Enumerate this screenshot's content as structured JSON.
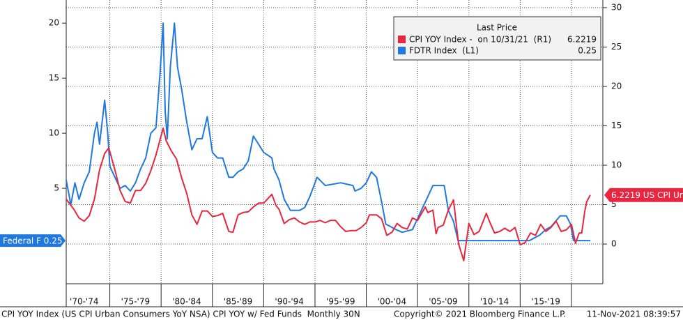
{
  "chart_data": {
    "type": "line",
    "legend_title": "Last Price",
    "xlim": [
      1970.75,
      2023.06
    ],
    "xticks": [
      {
        "value": 1972.5,
        "label": "'70-'74"
      },
      {
        "value": 1977.5,
        "label": "'75-'79"
      },
      {
        "value": 1982.5,
        "label": "'80-'84"
      },
      {
        "value": 1987.5,
        "label": "'85-'89"
      },
      {
        "value": 1992.5,
        "label": "'90-'94"
      },
      {
        "value": 1997.5,
        "label": "'95-'99"
      },
      {
        "value": 2002.5,
        "label": "'00-'04"
      },
      {
        "value": 2007.5,
        "label": "'05-'09"
      },
      {
        "value": 2012.5,
        "label": "'10-'14"
      },
      {
        "value": 2017.5,
        "label": "'15-'19"
      }
    ],
    "xgrid": [
      1975,
      1980,
      1985,
      1990,
      1995,
      2000,
      2005,
      2010,
      2015,
      2020
    ],
    "ylim": [
      -3.67,
      22.1
    ],
    "yticks": [
      5,
      10,
      15,
      20
    ],
    "y2lim": [
      -5.04,
      30.97
    ],
    "y2ticks": [
      0,
      5,
      10,
      15,
      20,
      25,
      30
    ],
    "grid": true,
    "series": [
      {
        "name": "CPI YOY Index -  on 10/31/21  (R1)",
        "color": "#e8263f",
        "axis": "y2",
        "tag": "6.2219 US CPI Ur",
        "x": [
          1970.75,
          1971.5,
          1972.0,
          1972.5,
          1973.0,
          1973.5,
          1974.0,
          1974.5,
          1974.9,
          1975.5,
          1976.0,
          1976.5,
          1977.0,
          1977.5,
          1978.0,
          1978.5,
          1979.0,
          1979.5,
          1980.2,
          1980.5,
          1981.0,
          1981.5,
          1982.0,
          1982.5,
          1983.0,
          1983.5,
          1984.0,
          1984.5,
          1985.0,
          1985.5,
          1986.0,
          1986.6,
          1987.0,
          1987.5,
          1988.0,
          1988.5,
          1989.0,
          1989.5,
          1990.0,
          1990.8,
          1991.2,
          1991.5,
          1992.0,
          1992.5,
          1993.0,
          1993.5,
          1994.0,
          1994.5,
          1995.0,
          1995.5,
          1996.0,
          1996.5,
          1997.0,
          1997.5,
          1998.0,
          1998.5,
          1999.0,
          1999.5,
          2000.0,
          2000.3,
          2001.0,
          2001.5,
          2002.0,
          2002.5,
          2003.0,
          2003.5,
          2004.0,
          2004.5,
          2005.0,
          2005.75,
          2006.0,
          2006.5,
          2006.8,
          2007.0,
          2007.5,
          2008.0,
          2008.5,
          2009.0,
          2009.5,
          2010.0,
          2010.5,
          2011.0,
          2011.7,
          2012.0,
          2012.5,
          2013.0,
          2013.5,
          2014.0,
          2014.5,
          2015.0,
          2015.5,
          2016.0,
          2016.5,
          2017.0,
          2017.5,
          2018.0,
          2018.5,
          2019.0,
          2019.5,
          2020.0,
          2020.4,
          2020.75,
          2021.0,
          2021.3,
          2021.5,
          2021.83
        ],
        "values": [
          5.7,
          4.4,
          3.3,
          2.9,
          3.6,
          5.7,
          9.4,
          11.5,
          12.2,
          9.4,
          6.8,
          5.4,
          5.2,
          6.8,
          6.8,
          7.7,
          9.3,
          11.3,
          14.7,
          13.1,
          11.8,
          10.8,
          8.4,
          6.4,
          3.7,
          2.5,
          4.2,
          4.2,
          3.5,
          3.6,
          3.9,
          1.6,
          1.5,
          3.7,
          4.0,
          4.1,
          4.7,
          5.2,
          5.2,
          6.3,
          4.9,
          4.4,
          2.6,
          3.1,
          3.3,
          2.8,
          2.5,
          2.8,
          2.8,
          3.0,
          2.7,
          3.0,
          3.0,
          2.2,
          1.6,
          1.7,
          1.7,
          2.1,
          2.7,
          3.7,
          3.7,
          3.2,
          1.1,
          1.5,
          2.6,
          2.1,
          1.9,
          3.3,
          3.0,
          4.7,
          4.0,
          4.3,
          1.3,
          2.1,
          2.4,
          4.3,
          5.6,
          0.0,
          -2.1,
          2.6,
          1.2,
          1.6,
          3.9,
          2.9,
          1.4,
          1.6,
          2.0,
          1.6,
          2.1,
          -0.1,
          0.2,
          1.4,
          1.1,
          2.5,
          1.6,
          2.1,
          2.9,
          1.6,
          1.8,
          2.5,
          0.1,
          1.4,
          1.4,
          4.2,
          5.4,
          6.2219
        ]
      },
      {
        "name": "FDTR Index  (L1)",
        "color": "#1f78e0",
        "axis": "y",
        "tag": "Federal F 0.25",
        "x": [
          1970.75,
          1971.0,
          1971.2,
          1971.6,
          1972.0,
          1972.5,
          1973.0,
          1973.5,
          1973.75,
          1974.0,
          1974.5,
          1974.8,
          1975.0,
          1975.5,
          1976.0,
          1976.5,
          1977.0,
          1977.5,
          1978.0,
          1978.5,
          1979.0,
          1979.5,
          1979.9,
          1980.2,
          1980.4,
          1980.6,
          1980.9,
          1981.3,
          1981.6,
          1982.0,
          1982.5,
          1983.0,
          1983.5,
          1984.0,
          1984.5,
          1985.0,
          1985.5,
          1986.0,
          1986.6,
          1987.0,
          1987.5,
          1988.0,
          1988.5,
          1989.0,
          1989.5,
          1990.0,
          1990.8,
          1991.0,
          1991.5,
          1992.0,
          1992.6,
          1993.5,
          1994.0,
          1994.5,
          1995.0,
          1995.2,
          1996.0,
          1997.5,
          1998.7,
          1998.9,
          1999.5,
          2000.0,
          2000.5,
          2001.0,
          2001.5,
          2001.9,
          2002.9,
          2003.5,
          2004.5,
          2005.0,
          2005.5,
          2006.0,
          2006.5,
          2007.6,
          2008.0,
          2008.5,
          2008.95,
          2015.9,
          2016.9,
          2017.5,
          2018.0,
          2018.9,
          2019.5,
          2019.9,
          2020.2,
          2021.83
        ],
        "values": [
          5.75,
          4.5,
          3.5,
          5.5,
          4.0,
          5.5,
          6.5,
          10.0,
          11.0,
          9.0,
          13.0,
          10.0,
          7.0,
          6.0,
          5.0,
          5.25,
          4.75,
          5.5,
          6.75,
          7.75,
          10.0,
          10.5,
          15.5,
          20.0,
          12.0,
          9.5,
          16.0,
          20.0,
          16.0,
          14.0,
          11.0,
          8.5,
          9.5,
          9.5,
          11.5,
          8.25,
          7.75,
          7.75,
          6.0,
          6.0,
          6.5,
          6.75,
          7.5,
          9.75,
          9.0,
          8.25,
          7.75,
          6.75,
          5.75,
          4.0,
          3.0,
          3.0,
          3.25,
          4.25,
          5.5,
          6.0,
          5.25,
          5.5,
          5.25,
          4.75,
          5.0,
          5.5,
          6.5,
          6.0,
          3.75,
          1.75,
          1.25,
          1.0,
          1.25,
          2.25,
          3.25,
          4.25,
          5.25,
          5.25,
          3.0,
          2.0,
          0.25,
          0.25,
          0.75,
          1.25,
          1.5,
          2.5,
          2.5,
          1.75,
          0.25,
          0.25
        ]
      }
    ],
    "footer": {
      "description": "CPI YOY Index (US CPI Urban Consumers YoY NSA) CPI YOY w/ Fed Funds  Monthly 30N",
      "copyright": "Copyright© 2021 Bloomberg Finance L.P.",
      "timestamp": "11-Nov-2021 08:39:57"
    }
  }
}
